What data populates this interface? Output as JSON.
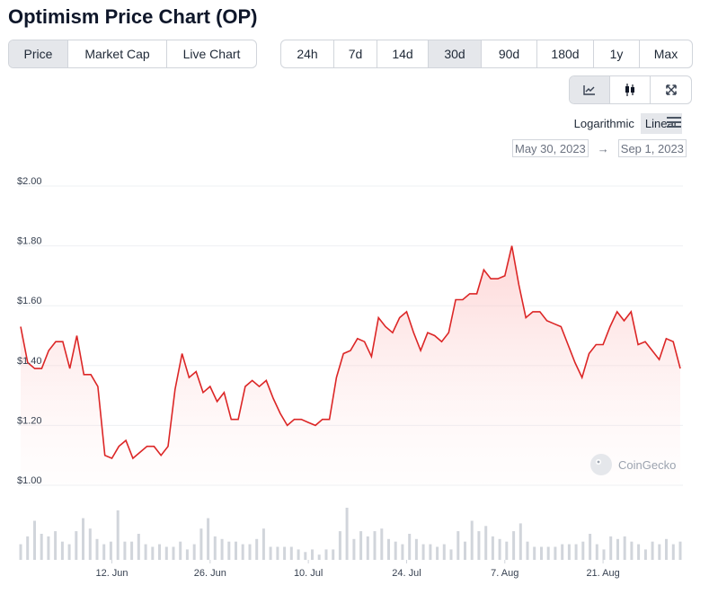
{
  "page_title": "Optimism Price Chart (OP)",
  "view_tabs": [
    {
      "label": "Price",
      "active": true
    },
    {
      "label": "Market Cap",
      "active": false
    },
    {
      "label": "Live Chart",
      "active": false
    }
  ],
  "range_tabs": [
    {
      "label": "24h",
      "active": false
    },
    {
      "label": "7d",
      "active": false
    },
    {
      "label": "14d",
      "active": false
    },
    {
      "label": "30d",
      "active": true
    },
    {
      "label": "90d",
      "active": false
    },
    {
      "label": "180d",
      "active": false
    },
    {
      "label": "1y",
      "active": false
    },
    {
      "label": "Max",
      "active": false
    }
  ],
  "tools": [
    {
      "icon": "line-chart-icon",
      "active": true
    },
    {
      "icon": "candlestick-icon",
      "active": false
    },
    {
      "icon": "expand-icon",
      "active": false
    }
  ],
  "scale": {
    "logarithmic_label": "Logarithmic",
    "linear_label": "Linear",
    "active": "Linear"
  },
  "date_range": {
    "from": "May 30, 2023",
    "arrow": "→",
    "to": "Sep 1, 2023"
  },
  "watermark": "CoinGecko",
  "colors": {
    "line": "#dc2626",
    "fill": "#fee2e2",
    "volume": "#d1d5db"
  },
  "chart_data": {
    "type": "area",
    "y_tick_labels": [
      "$1.00",
      "$1.20",
      "$1.40",
      "$1.60",
      "$1.80",
      "$2.00"
    ],
    "y_ticks": [
      1.0,
      1.2,
      1.4,
      1.6,
      1.8,
      2.0
    ],
    "ylim": [
      1.0,
      2.0
    ],
    "x_tick_labels": [
      "12. Jun",
      "26. Jun",
      "10. Jul",
      "24. Jul",
      "7. Aug",
      "21. Aug"
    ],
    "x_ticks": [
      "2023-06-12",
      "2023-06-26",
      "2023-07-10",
      "2023-07-24",
      "2023-08-07",
      "2023-08-21"
    ],
    "x_range": [
      "2023-05-30",
      "2023-09-01"
    ],
    "grid": true,
    "series": [
      {
        "values": [
          [
            "2023-05-30",
            1.53
          ],
          [
            "2023-05-31",
            1.41
          ],
          [
            "2023-06-01",
            1.39
          ],
          [
            "2023-06-02",
            1.39
          ],
          [
            "2023-06-03",
            1.45
          ],
          [
            "2023-06-04",
            1.48
          ],
          [
            "2023-06-05",
            1.48
          ],
          [
            "2023-06-06",
            1.39
          ],
          [
            "2023-06-07",
            1.5
          ],
          [
            "2023-06-08",
            1.37
          ],
          [
            "2023-06-09",
            1.37
          ],
          [
            "2023-06-10",
            1.33
          ],
          [
            "2023-06-11",
            1.1
          ],
          [
            "2023-06-12",
            1.09
          ],
          [
            "2023-06-13",
            1.13
          ],
          [
            "2023-06-14",
            1.15
          ],
          [
            "2023-06-15",
            1.09
          ],
          [
            "2023-06-16",
            1.11
          ],
          [
            "2023-06-17",
            1.13
          ],
          [
            "2023-06-18",
            1.13
          ],
          [
            "2023-06-19",
            1.1
          ],
          [
            "2023-06-20",
            1.13
          ],
          [
            "2023-06-21",
            1.32
          ],
          [
            "2023-06-22",
            1.44
          ],
          [
            "2023-06-23",
            1.36
          ],
          [
            "2023-06-24",
            1.38
          ],
          [
            "2023-06-25",
            1.31
          ],
          [
            "2023-06-26",
            1.33
          ],
          [
            "2023-06-27",
            1.28
          ],
          [
            "2023-06-28",
            1.31
          ],
          [
            "2023-06-29",
            1.22
          ],
          [
            "2023-06-30",
            1.22
          ],
          [
            "2023-07-01",
            1.33
          ],
          [
            "2023-07-02",
            1.35
          ],
          [
            "2023-07-03",
            1.33
          ],
          [
            "2023-07-04",
            1.35
          ],
          [
            "2023-07-05",
            1.29
          ],
          [
            "2023-07-06",
            1.24
          ],
          [
            "2023-07-07",
            1.2
          ],
          [
            "2023-07-08",
            1.22
          ],
          [
            "2023-07-09",
            1.22
          ],
          [
            "2023-07-10",
            1.21
          ],
          [
            "2023-07-11",
            1.2
          ],
          [
            "2023-07-12",
            1.22
          ],
          [
            "2023-07-13",
            1.22
          ],
          [
            "2023-07-14",
            1.36
          ],
          [
            "2023-07-15",
            1.44
          ],
          [
            "2023-07-16",
            1.45
          ],
          [
            "2023-07-17",
            1.49
          ],
          [
            "2023-07-18",
            1.48
          ],
          [
            "2023-07-19",
            1.43
          ],
          [
            "2023-07-20",
            1.56
          ],
          [
            "2023-07-21",
            1.53
          ],
          [
            "2023-07-22",
            1.51
          ],
          [
            "2023-07-23",
            1.56
          ],
          [
            "2023-07-24",
            1.58
          ],
          [
            "2023-07-25",
            1.51
          ],
          [
            "2023-07-26",
            1.45
          ],
          [
            "2023-07-27",
            1.51
          ],
          [
            "2023-07-28",
            1.5
          ],
          [
            "2023-07-29",
            1.48
          ],
          [
            "2023-07-30",
            1.51
          ],
          [
            "2023-07-31",
            1.62
          ],
          [
            "2023-08-01",
            1.62
          ],
          [
            "2023-08-02",
            1.64
          ],
          [
            "2023-08-03",
            1.64
          ],
          [
            "2023-08-04",
            1.72
          ],
          [
            "2023-08-05",
            1.69
          ],
          [
            "2023-08-06",
            1.69
          ],
          [
            "2023-08-07",
            1.7
          ],
          [
            "2023-08-08",
            1.8
          ],
          [
            "2023-08-09",
            1.67
          ],
          [
            "2023-08-10",
            1.56
          ],
          [
            "2023-08-11",
            1.58
          ],
          [
            "2023-08-12",
            1.58
          ],
          [
            "2023-08-13",
            1.55
          ],
          [
            "2023-08-14",
            1.54
          ],
          [
            "2023-08-15",
            1.53
          ],
          [
            "2023-08-16",
            1.47
          ],
          [
            "2023-08-17",
            1.41
          ],
          [
            "2023-08-18",
            1.36
          ],
          [
            "2023-08-19",
            1.44
          ],
          [
            "2023-08-20",
            1.47
          ],
          [
            "2023-08-21",
            1.47
          ],
          [
            "2023-08-22",
            1.53
          ],
          [
            "2023-08-23",
            1.58
          ],
          [
            "2023-08-24",
            1.55
          ],
          [
            "2023-08-25",
            1.58
          ],
          [
            "2023-08-26",
            1.47
          ],
          [
            "2023-08-27",
            1.48
          ],
          [
            "2023-08-28",
            1.45
          ],
          [
            "2023-08-29",
            1.42
          ],
          [
            "2023-08-30",
            1.49
          ],
          [
            "2023-08-31",
            1.48
          ],
          [
            "2023-09-01",
            1.39
          ]
        ]
      }
    ],
    "volume_relative": [
      0.3,
      0.45,
      0.75,
      0.5,
      0.45,
      0.55,
      0.35,
      0.3,
      0.55,
      0.8,
      0.6,
      0.4,
      0.3,
      0.35,
      0.95,
      0.35,
      0.35,
      0.5,
      0.3,
      0.25,
      0.3,
      0.25,
      0.25,
      0.35,
      0.2,
      0.3,
      0.6,
      0.8,
      0.45,
      0.4,
      0.35,
      0.35,
      0.3,
      0.3,
      0.4,
      0.6,
      0.25,
      0.25,
      0.25,
      0.25,
      0.2,
      0.15,
      0.2,
      0.1,
      0.2,
      0.2,
      0.55,
      1.0,
      0.4,
      0.55,
      0.45,
      0.55,
      0.6,
      0.4,
      0.35,
      0.3,
      0.5,
      0.4,
      0.3,
      0.3,
      0.25,
      0.3,
      0.2,
      0.55,
      0.35,
      0.75,
      0.55,
      0.65,
      0.45,
      0.4,
      0.35,
      0.55,
      0.7,
      0.35,
      0.25,
      0.25,
      0.25,
      0.25,
      0.3,
      0.3,
      0.3,
      0.35,
      0.5,
      0.3,
      0.2,
      0.45,
      0.4,
      0.45,
      0.35,
      0.3,
      0.2,
      0.35,
      0.3,
      0.4,
      0.3,
      0.35
    ]
  }
}
